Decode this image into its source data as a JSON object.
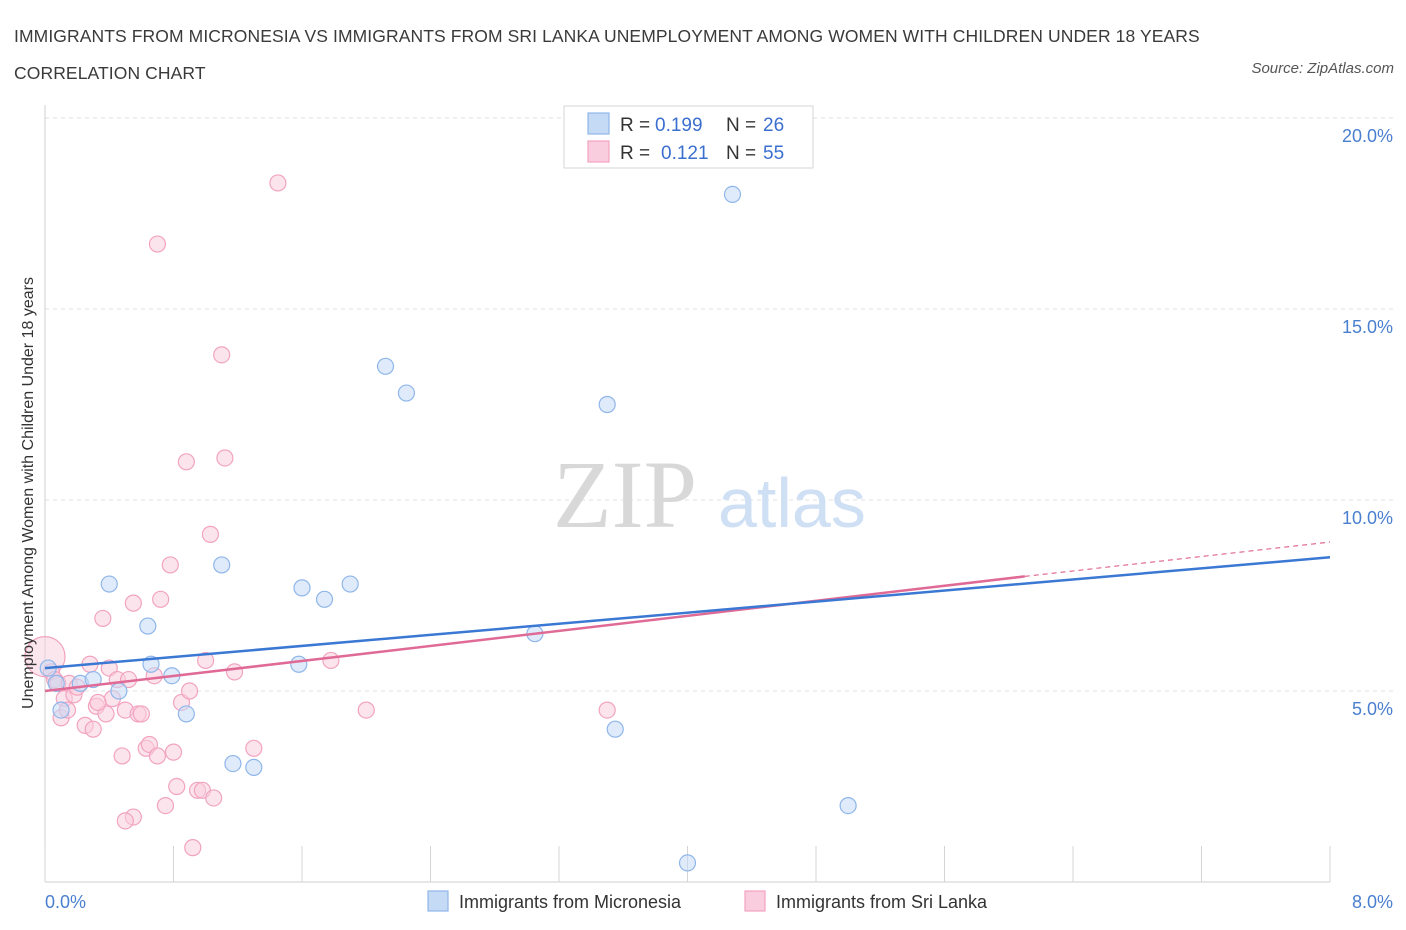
{
  "title": "IMMIGRANTS FROM MICRONESIA VS IMMIGRANTS FROM SRI LANKA UNEMPLOYMENT AMONG WOMEN WITH CHILDREN UNDER 18 YEARS CORRELATION CHART",
  "source": "Source: ZipAtlas.com",
  "watermark": {
    "zip": "ZIP",
    "atlas": "atlas"
  },
  "legend_stats": [
    {
      "r_label": "R =",
      "r_value": "0.199",
      "n_label": "N =",
      "n_value": "26"
    },
    {
      "r_label": "R =",
      "r_value": "0.121",
      "n_label": "N =",
      "n_value": "55"
    }
  ],
  "chart_data": {
    "type": "scatter",
    "title": "IMMIGRANTS FROM MICRONESIA VS IMMIGRANTS FROM SRI LANKA UNEMPLOYMENT AMONG WOMEN WITH CHILDREN UNDER 18 YEARS CORRELATION CHART",
    "xlabel": "",
    "ylabel": "Unemployment Among Women with Children Under 18 years",
    "xlim": [
      0,
      8
    ],
    "ylim": [
      0,
      20
    ],
    "x_ticks": [
      "0.0%",
      "8.0%"
    ],
    "y_ticks": [
      {
        "value": 5,
        "label": "5.0%"
      },
      {
        "value": 10,
        "label": "10.0%"
      },
      {
        "value": 15,
        "label": "15.0%"
      },
      {
        "value": 20,
        "label": "20.0%"
      }
    ],
    "grid": true,
    "legend_position": "bottom",
    "series": [
      {
        "name": "Immigrants from Micronesia",
        "color": "#8fb6ea",
        "fill": "#c5daf5",
        "line_color": "#3a78d4",
        "trend": {
          "x": [
            0,
            8
          ],
          "y": [
            5.6,
            8.5
          ]
        },
        "points": [
          [
            0.02,
            5.6
          ],
          [
            0.22,
            5.2
          ],
          [
            0.4,
            7.8
          ],
          [
            0.46,
            5.0
          ],
          [
            0.64,
            6.7
          ],
          [
            0.66,
            5.7
          ],
          [
            0.79,
            5.4
          ],
          [
            0.88,
            4.4
          ],
          [
            1.1,
            8.3
          ],
          [
            1.17,
            3.1
          ],
          [
            1.3,
            3.0
          ],
          [
            1.58,
            5.7
          ],
          [
            1.6,
            7.7
          ],
          [
            1.74,
            7.4
          ],
          [
            1.9,
            7.8
          ],
          [
            2.12,
            13.5
          ],
          [
            2.25,
            12.8
          ],
          [
            3.05,
            6.5
          ],
          [
            3.5,
            12.5
          ],
          [
            3.55,
            4.0
          ],
          [
            4.28,
            18.0
          ],
          [
            4.0,
            0.5
          ],
          [
            5.0,
            2.0
          ],
          [
            0.07,
            5.2
          ],
          [
            0.1,
            4.5
          ],
          [
            0.3,
            5.3
          ]
        ]
      },
      {
        "name": "Immigrants from Sri Lanka",
        "color": "#f2a3c0",
        "fill": "#f9cddd",
        "line_color": "#e06a96",
        "trend": {
          "x": [
            0,
            6.1
          ],
          "y": [
            5.0,
            8.0
          ]
        },
        "trend_dashed": {
          "x": [
            6.1,
            8
          ],
          "y": [
            8.0,
            8.9
          ]
        },
        "points": [
          [
            0.0,
            5.9
          ],
          [
            0.04,
            5.5
          ],
          [
            0.06,
            5.3
          ],
          [
            0.08,
            5.2
          ],
          [
            0.1,
            4.3
          ],
          [
            0.12,
            4.8
          ],
          [
            0.14,
            4.5
          ],
          [
            0.15,
            5.2
          ],
          [
            0.18,
            4.9
          ],
          [
            0.2,
            5.1
          ],
          [
            0.25,
            4.1
          ],
          [
            0.28,
            5.7
          ],
          [
            0.3,
            4.0
          ],
          [
            0.32,
            4.6
          ],
          [
            0.36,
            6.9
          ],
          [
            0.38,
            4.4
          ],
          [
            0.4,
            5.6
          ],
          [
            0.42,
            4.8
          ],
          [
            0.45,
            5.3
          ],
          [
            0.48,
            3.3
          ],
          [
            0.5,
            4.5
          ],
          [
            0.52,
            5.3
          ],
          [
            0.55,
            7.3
          ],
          [
            0.58,
            4.4
          ],
          [
            0.6,
            4.4
          ],
          [
            0.63,
            3.5
          ],
          [
            0.65,
            3.6
          ],
          [
            0.68,
            5.4
          ],
          [
            0.7,
            3.3
          ],
          [
            0.72,
            7.4
          ],
          [
            0.75,
            2.0
          ],
          [
            0.78,
            8.3
          ],
          [
            0.8,
            3.4
          ],
          [
            0.82,
            2.5
          ],
          [
            0.85,
            4.7
          ],
          [
            0.88,
            11.0
          ],
          [
            0.9,
            5.0
          ],
          [
            0.92,
            0.9
          ],
          [
            0.95,
            2.4
          ],
          [
            0.98,
            2.4
          ],
          [
            1.0,
            5.8
          ],
          [
            1.03,
            9.1
          ],
          [
            1.05,
            2.2
          ],
          [
            1.1,
            13.8
          ],
          [
            1.12,
            11.1
          ],
          [
            1.18,
            5.5
          ],
          [
            1.3,
            3.5
          ],
          [
            1.45,
            18.3
          ],
          [
            0.7,
            16.7
          ],
          [
            0.55,
            1.7
          ],
          [
            0.5,
            1.6
          ],
          [
            1.78,
            5.8
          ],
          [
            2.0,
            4.5
          ],
          [
            3.5,
            4.5
          ],
          [
            0.33,
            4.7
          ]
        ]
      }
    ]
  }
}
